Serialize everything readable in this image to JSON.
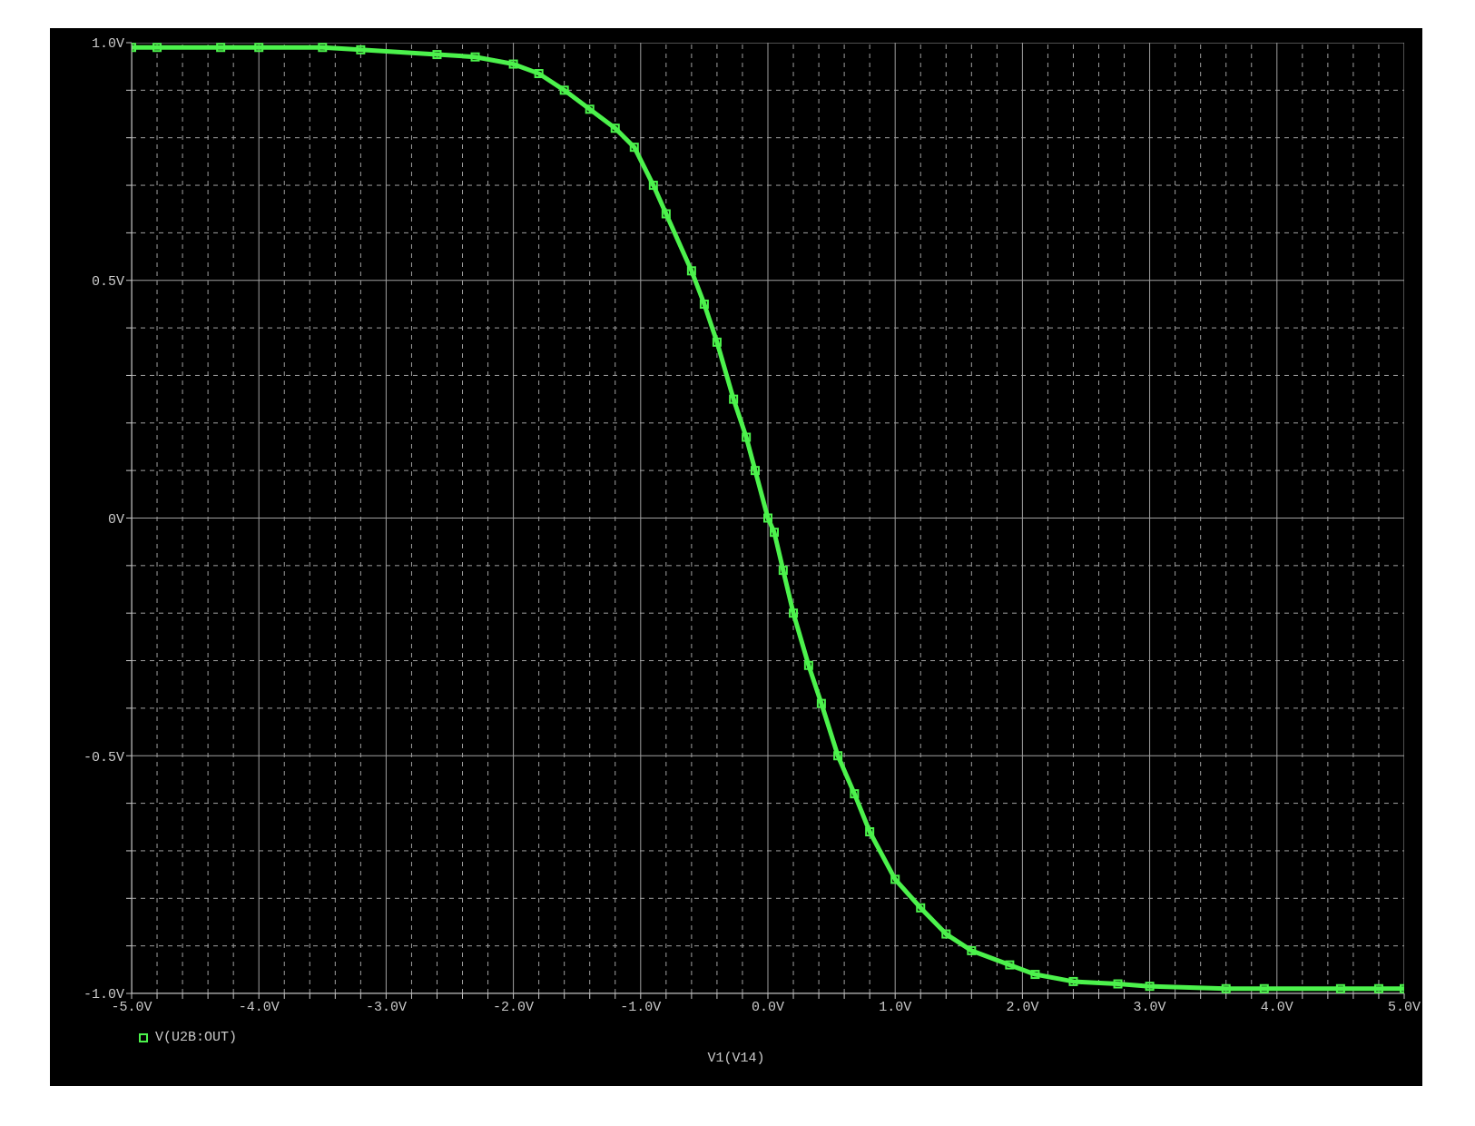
{
  "chart_data": {
    "type": "line",
    "xlabel": "V1(V14)",
    "x": [
      -5,
      -4.8,
      -4.3,
      -4,
      -3.5,
      -3.2,
      -2.6,
      -2.3,
      -2,
      -1.8,
      -1.6,
      -1.4,
      -1.2,
      -1.05,
      -0.9,
      -0.8,
      -0.6,
      -0.5,
      -0.4,
      -0.27,
      -0.17,
      -0.1,
      0,
      0.05,
      0.12,
      0.2,
      0.32,
      0.42,
      0.55,
      0.68,
      0.8,
      1,
      1.2,
      1.4,
      1.6,
      1.9,
      2.1,
      2.4,
      2.75,
      3,
      3.6,
      3.9,
      4.5,
      4.8,
      5
    ],
    "series": [
      {
        "name": "V(U2B:OUT)",
        "color": "#4cf24c",
        "values": [
          0.99,
          0.99,
          0.99,
          0.99,
          0.99,
          0.985,
          0.975,
          0.97,
          0.955,
          0.935,
          0.9,
          0.86,
          0.82,
          0.78,
          0.7,
          0.64,
          0.52,
          0.45,
          0.37,
          0.25,
          0.17,
          0.1,
          0.0,
          -0.03,
          -0.11,
          -0.2,
          -0.31,
          -0.39,
          -0.5,
          -0.58,
          -0.66,
          -0.76,
          -0.82,
          -0.875,
          -0.91,
          -0.94,
          -0.96,
          -0.975,
          -0.98,
          -0.985,
          -0.99,
          -0.99,
          -0.99,
          -0.99,
          -0.99
        ]
      }
    ],
    "xlim": [
      -5,
      5
    ],
    "xticks": [
      {
        "value": -5,
        "label": "-5.0V"
      },
      {
        "value": -4.8,
        "label": null
      },
      {
        "value": -4.6,
        "label": null
      },
      {
        "value": -4.4,
        "label": null
      },
      {
        "value": -4.2,
        "label": null
      },
      {
        "value": -4,
        "label": "-4.0V"
      },
      {
        "value": -3.8,
        "label": null
      },
      {
        "value": -3.6,
        "label": null
      },
      {
        "value": -3.4,
        "label": null
      },
      {
        "value": -3.2,
        "label": null
      },
      {
        "value": -3,
        "label": "-3.0V"
      },
      {
        "value": -2.8,
        "label": null
      },
      {
        "value": -2.6,
        "label": null
      },
      {
        "value": -2.4,
        "label": null
      },
      {
        "value": -2.2,
        "label": null
      },
      {
        "value": -2,
        "label": "-2.0V"
      },
      {
        "value": -1.8,
        "label": null
      },
      {
        "value": -1.6,
        "label": null
      },
      {
        "value": -1.4,
        "label": null
      },
      {
        "value": -1.2,
        "label": null
      },
      {
        "value": -1,
        "label": "-1.0V"
      },
      {
        "value": -0.8,
        "label": null
      },
      {
        "value": -0.6,
        "label": null
      },
      {
        "value": -0.4,
        "label": null
      },
      {
        "value": -0.2,
        "label": null
      },
      {
        "value": 0,
        "label": "0.0V"
      },
      {
        "value": 0.2,
        "label": null
      },
      {
        "value": 0.4,
        "label": null
      },
      {
        "value": 0.6,
        "label": null
      },
      {
        "value": 0.8,
        "label": null
      },
      {
        "value": 1,
        "label": "1.0V"
      },
      {
        "value": 1.2,
        "label": null
      },
      {
        "value": 1.4,
        "label": null
      },
      {
        "value": 1.6,
        "label": null
      },
      {
        "value": 1.8,
        "label": null
      },
      {
        "value": 2,
        "label": "2.0V"
      },
      {
        "value": 2.2,
        "label": null
      },
      {
        "value": 2.4,
        "label": null
      },
      {
        "value": 2.6,
        "label": null
      },
      {
        "value": 2.8,
        "label": null
      },
      {
        "value": 3,
        "label": "3.0V"
      },
      {
        "value": 3.2,
        "label": null
      },
      {
        "value": 3.4,
        "label": null
      },
      {
        "value": 3.6,
        "label": null
      },
      {
        "value": 3.8,
        "label": null
      },
      {
        "value": 4,
        "label": "4.0V"
      },
      {
        "value": 4.2,
        "label": null
      },
      {
        "value": 4.4,
        "label": null
      },
      {
        "value": 4.6,
        "label": null
      },
      {
        "value": 4.8,
        "label": null
      },
      {
        "value": 5,
        "label": "5.0V"
      }
    ],
    "ylim": [
      -1,
      1
    ],
    "yticks": [
      {
        "value": -1,
        "label": "-1.0V"
      },
      {
        "value": -0.9,
        "label": null
      },
      {
        "value": -0.8,
        "label": null
      },
      {
        "value": -0.7,
        "label": null
      },
      {
        "value": -0.6,
        "label": null
      },
      {
        "value": -0.5,
        "label": "-0.5V"
      },
      {
        "value": -0.4,
        "label": null
      },
      {
        "value": -0.3,
        "label": null
      },
      {
        "value": -0.2,
        "label": null
      },
      {
        "value": -0.1,
        "label": null
      },
      {
        "value": 0,
        "label": "0V"
      },
      {
        "value": 0.1,
        "label": null
      },
      {
        "value": 0.2,
        "label": null
      },
      {
        "value": 0.3,
        "label": null
      },
      {
        "value": 0.4,
        "label": null
      },
      {
        "value": 0.5,
        "label": "0.5V"
      },
      {
        "value": 0.6,
        "label": null
      },
      {
        "value": 0.7,
        "label": null
      },
      {
        "value": 0.8,
        "label": null
      },
      {
        "value": 0.9,
        "label": null
      },
      {
        "value": 1,
        "label": "1.0V"
      }
    ],
    "grid": true,
    "legend": "bottom left",
    "marker": "square",
    "line_style": "solid"
  }
}
